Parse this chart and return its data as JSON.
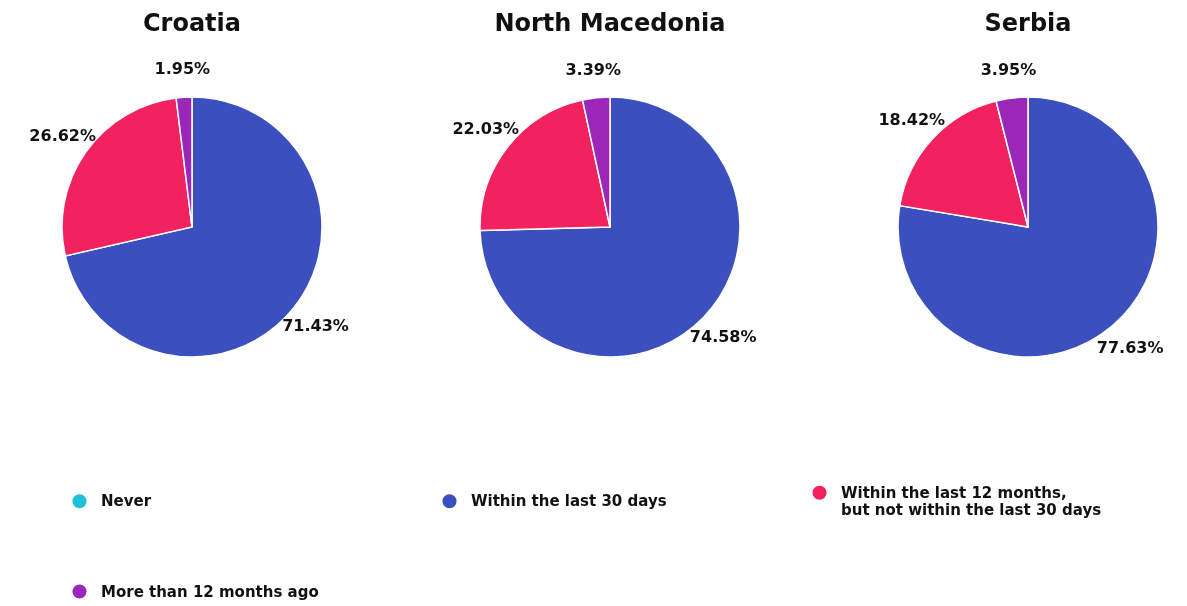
{
  "chart_data": {
    "type": "pie",
    "categories": [
      "Never",
      "Within the last 30 days",
      "Within the last 12 months, but not within the last 30 days",
      "More than 12 months ago"
    ],
    "colors": [
      "#1ec0d8",
      "#3b4fbf",
      "#f2215f",
      "#9b27b8"
    ],
    "legend": "bottom",
    "series": [
      {
        "name": "Croatia",
        "values": [
          null,
          71.43,
          26.62,
          1.95
        ],
        "value_labels": [
          null,
          "71.43%",
          "26.62%",
          "1.95%"
        ]
      },
      {
        "name": "North Macedonia",
        "values": [
          null,
          74.58,
          22.03,
          3.39
        ],
        "value_labels": [
          null,
          "74.58%",
          "22.03%",
          "3.39%"
        ]
      },
      {
        "name": "Serbia",
        "values": [
          null,
          77.63,
          18.42,
          3.95
        ],
        "value_labels": [
          null,
          "77.63%",
          "18.42%",
          "3.95%"
        ]
      }
    ]
  }
}
